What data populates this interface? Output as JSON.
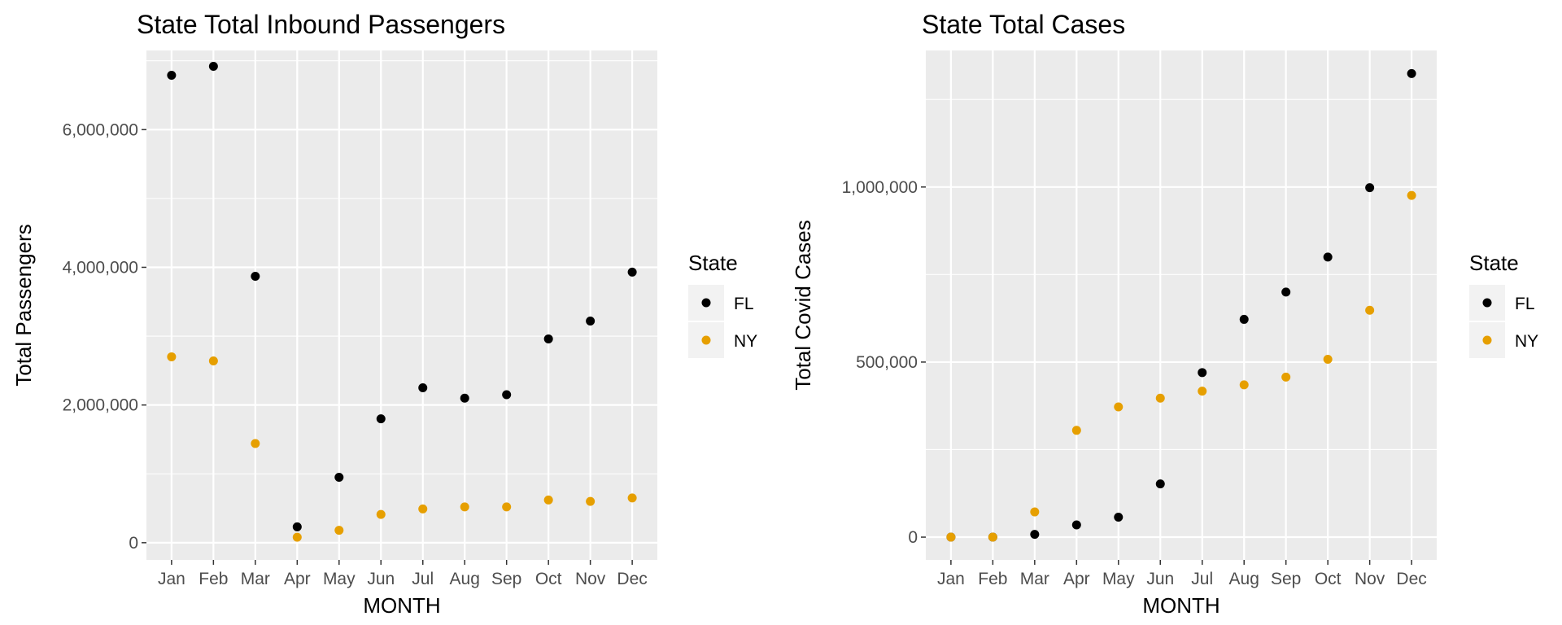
{
  "chart_data": [
    {
      "type": "scatter",
      "title": "State Total Inbound Passengers",
      "xlabel": "MONTH",
      "ylabel": "Total Passengers",
      "categories": [
        "Jan",
        "Feb",
        "Mar",
        "Apr",
        "May",
        "Jun",
        "Jul",
        "Aug",
        "Sep",
        "Oct",
        "Nov",
        "Dec"
      ],
      "ylim": [
        -250000,
        7150000
      ],
      "yticks": [
        0,
        2000000,
        4000000,
        6000000
      ],
      "ytick_labels": [
        "0",
        "2,000,000",
        "4,000,000",
        "6,000,000"
      ],
      "grid": true,
      "legend": {
        "title": "State",
        "placement": "right"
      },
      "series": [
        {
          "name": "FL",
          "color": "#000000",
          "values": [
            6790000,
            6920000,
            3870000,
            230000,
            950000,
            1800000,
            2250000,
            2100000,
            2150000,
            2960000,
            3220000,
            3930000
          ]
        },
        {
          "name": "NY",
          "color": "#E69F00",
          "values": [
            2700000,
            2640000,
            1440000,
            80000,
            180000,
            410000,
            490000,
            520000,
            520000,
            620000,
            600000,
            650000
          ]
        }
      ]
    },
    {
      "type": "scatter",
      "title": "State Total Cases",
      "xlabel": "MONTH",
      "ylabel": "Total Covid Cases",
      "categories": [
        "Jan",
        "Feb",
        "Mar",
        "Apr",
        "May",
        "Jun",
        "Jul",
        "Aug",
        "Sep",
        "Oct",
        "Nov",
        "Dec"
      ],
      "ylim": [
        -65000,
        1390000
      ],
      "yticks": [
        0,
        500000,
        1000000
      ],
      "ytick_labels": [
        "0",
        "500,000",
        "1,000,000"
      ],
      "grid": true,
      "legend": {
        "title": "State",
        "placement": "right"
      },
      "series": [
        {
          "name": "FL",
          "color": "#000000",
          "values": [
            0,
            0,
            8000,
            35000,
            57000,
            152000,
            470000,
            622000,
            700000,
            800000,
            998000,
            1324000
          ]
        },
        {
          "name": "NY",
          "color": "#E69F00",
          "values": [
            0,
            0,
            72000,
            305000,
            372000,
            397000,
            417000,
            435000,
            457000,
            508000,
            648000,
            976000
          ]
        }
      ]
    }
  ]
}
